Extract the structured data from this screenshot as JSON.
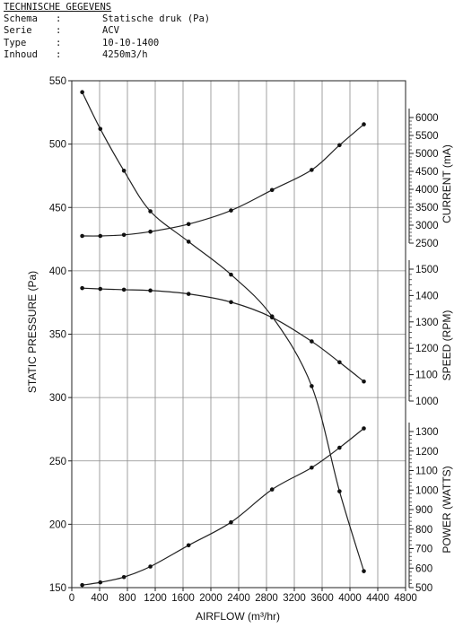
{
  "specs": {
    "title": "TECHNISCHE GEGEVENS",
    "rows": [
      {
        "key": "Schema",
        "sep": ":",
        "value": "Statische druk (Pa)"
      },
      {
        "key": "Serie",
        "sep": ":",
        "value": "ACV"
      },
      {
        "key": "Type",
        "sep": ":",
        "value": "10-10-1400"
      },
      {
        "key": "Inhoud",
        "sep": ":",
        "value": "4250m3/h"
      }
    ]
  },
  "chart_data": {
    "type": "line",
    "xlabel": "AIRFLOW (m³/hr)",
    "ylabel": "STATIC PRESSURE (Pa)",
    "xlim": [
      0,
      4800
    ],
    "ylim": [
      150,
      550
    ],
    "x_ticks": [
      "0",
      "400",
      "800",
      "1200",
      "1600",
      "2000",
      "2400",
      "2800",
      "3200",
      "3600",
      "4000",
      "4400",
      "4800"
    ],
    "y_ticks": [
      "150",
      "200",
      "250",
      "300",
      "350",
      "400",
      "450",
      "500",
      "550"
    ],
    "grid": true,
    "right_axes": [
      {
        "label": "CURRENT (mA)",
        "ticks": [
          "2500",
          "3000",
          "3500",
          "4000",
          "4500",
          "5000",
          "5500",
          "6000"
        ]
      },
      {
        "label": "SPEED (RPM)",
        "ticks": [
          "1000",
          "1100",
          "1200",
          "1300",
          "1400",
          "1500"
        ]
      },
      {
        "label": "POWER (WATTS)",
        "ticks": [
          "500",
          "600",
          "700",
          "800",
          "900",
          "1000",
          "1100",
          "1200",
          "1300"
        ]
      }
    ],
    "series": [
      {
        "axis": "pressure",
        "x": [
          150,
          410,
          750,
          1130,
          1680,
          2290,
          2880,
          3450,
          3850,
          4200
        ],
        "values": [
          541,
          512,
          479,
          447,
          423,
          397,
          364,
          309,
          226,
          163
        ]
      },
      {
        "axis": "current",
        "x": [
          150,
          410,
          750,
          1130,
          1680,
          2290,
          2880,
          3450,
          3850,
          4200
        ],
        "values": [
          2700,
          2700,
          2730,
          2820,
          3030,
          3410,
          3980,
          4540,
          5230,
          5810
        ]
      },
      {
        "axis": "speed",
        "x": [
          150,
          410,
          750,
          1130,
          1680,
          2290,
          2880,
          3450,
          3850,
          4200
        ],
        "values": [
          1428,
          1425,
          1422,
          1419,
          1406,
          1375,
          1317,
          1226,
          1147,
          1074
        ]
      },
      {
        "axis": "power",
        "x": [
          150,
          410,
          750,
          1130,
          1680,
          2290,
          2880,
          3450,
          3850,
          4200
        ],
        "values": [
          513,
          527,
          554,
          608,
          717,
          835,
          1003,
          1115,
          1217,
          1316
        ]
      }
    ]
  }
}
